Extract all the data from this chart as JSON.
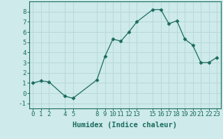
{
  "x": [
    0,
    1,
    2,
    4,
    5,
    8,
    9,
    10,
    11,
    12,
    13,
    15,
    16,
    17,
    18,
    19,
    20,
    21,
    22,
    23
  ],
  "y": [
    1.0,
    1.2,
    1.1,
    -0.3,
    -0.5,
    1.3,
    3.6,
    5.3,
    5.1,
    6.0,
    7.0,
    8.2,
    8.2,
    6.8,
    7.1,
    5.3,
    4.7,
    3.0,
    3.0,
    3.5
  ],
  "line_color": "#1a6b5e",
  "marker": "D",
  "marker_size": 2.5,
  "xlabel": "Humidex (Indice chaleur)",
  "xlim": [
    -0.5,
    23.5
  ],
  "ylim": [
    -1.5,
    9.0
  ],
  "yticks": [
    -1,
    0,
    1,
    2,
    3,
    4,
    5,
    6,
    7,
    8
  ],
  "xticks": [
    0,
    1,
    2,
    4,
    5,
    8,
    9,
    10,
    11,
    12,
    13,
    15,
    16,
    17,
    18,
    19,
    20,
    21,
    22,
    23
  ],
  "background_color": "#ceeaea",
  "grid_color": "#b8d8d8",
  "font_size": 6.5,
  "xlabel_fontsize": 7.5
}
